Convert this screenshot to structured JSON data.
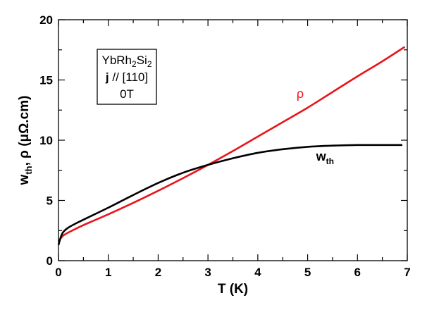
{
  "chart_data": {
    "type": "line",
    "xlabel": "T (K)",
    "ylabel": {
      "w_main": "w",
      "w_sub": "th",
      "rest": ", ρ (μΩ.cm)"
    },
    "xlim": [
      0,
      7
    ],
    "ylim": [
      0,
      20
    ],
    "x_ticks": [
      "0",
      "1",
      "2",
      "3",
      "4",
      "5",
      "6",
      "7"
    ],
    "y_ticks": [
      "0",
      "5",
      "10",
      "15",
      "20"
    ],
    "legend_box": {
      "line1_main": "YbRh",
      "line1_sub1": "2",
      "line1_mid": "Si",
      "line1_sub2": "2",
      "line2_bold": "j",
      "line2_rest": " // [110]",
      "line3": "0T"
    },
    "series": [
      {
        "key": "rho",
        "label": "ρ",
        "color": "#e8141b",
        "x": [
          0,
          0.1,
          0.3,
          0.5,
          1.0,
          1.5,
          2.0,
          2.5,
          3.0,
          3.5,
          4.0,
          4.5,
          5.0,
          5.5,
          6.0,
          6.5,
          6.95
        ],
        "y": [
          1.6,
          2.1,
          2.55,
          2.95,
          3.85,
          4.8,
          5.8,
          6.85,
          7.95,
          9.1,
          10.3,
          11.5,
          12.7,
          14.0,
          15.3,
          16.55,
          17.75
        ]
      },
      {
        "key": "wth",
        "label_main": "w",
        "label_sub": "th",
        "color": "#000000",
        "x": [
          0,
          0.05,
          0.1,
          0.2,
          0.4,
          0.6,
          1.0,
          1.5,
          2.0,
          2.5,
          3.0,
          3.5,
          4.0,
          4.5,
          5.0,
          5.5,
          6.0,
          6.5,
          6.9
        ],
        "y": [
          1.3,
          2.0,
          2.4,
          2.75,
          3.2,
          3.6,
          4.4,
          5.45,
          6.45,
          7.3,
          7.95,
          8.5,
          8.95,
          9.25,
          9.45,
          9.55,
          9.6,
          9.6,
          9.6
        ]
      }
    ]
  }
}
